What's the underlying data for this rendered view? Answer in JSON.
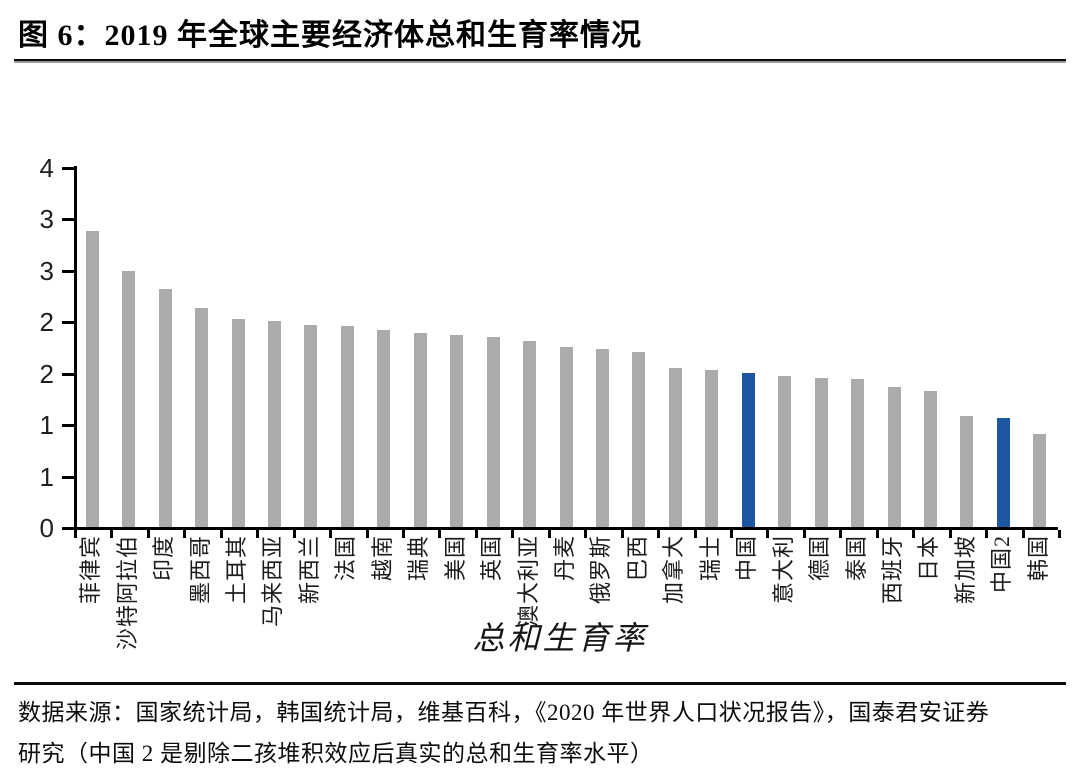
{
  "figure": {
    "title": "图 6：2019 年全球主要经济体总和生育率情况",
    "source_note_line1": "数据来源：国家统计局，韩国统计局，维基百科，《2020 年世界人口状况报告》，国泰君安证券",
    "source_note_line2": "研究（中国 2 是剔除二孩堆积效应后真实的总和生育率水平）"
  },
  "chart_data": {
    "type": "bar",
    "title": "2019 年全球主要经济体总和生育率情况",
    "xlabel": "总和生育率",
    "ylabel": "",
    "ylim": [
      0,
      3.5
    ],
    "grid": false,
    "legend_position": "none",
    "y_tick_values": [
      0,
      0.5,
      1,
      1.5,
      2,
      2.5,
      3,
      3.5
    ],
    "y_tick_labels": [
      "0",
      "1",
      "1",
      "2",
      "2",
      "3",
      "3",
      "4"
    ],
    "categories": [
      "菲律宾",
      "沙特阿拉伯",
      "印度",
      "墨西哥",
      "土耳其",
      "马来西亚",
      "新西兰",
      "法国",
      "越南",
      "瑞典",
      "美国",
      "英国",
      "澳大利亚",
      "丹麦",
      "俄罗斯",
      "巴西",
      "加拿大",
      "瑞士",
      "中国",
      "意大利",
      "德国",
      "泰国",
      "西班牙",
      "日本",
      "新加坡",
      "中国2",
      "韩国"
    ],
    "values": [
      2.88,
      2.49,
      2.31,
      2.13,
      2.02,
      2.0,
      1.96,
      1.95,
      1.92,
      1.89,
      1.87,
      1.85,
      1.81,
      1.75,
      1.73,
      1.7,
      1.55,
      1.53,
      1.5,
      1.47,
      1.45,
      1.44,
      1.36,
      1.32,
      1.08,
      1.06,
      0.9
    ],
    "highlighted_categories": [
      "中国",
      "中国2"
    ],
    "bar_color": "#ABABAB",
    "highlight_color": "#1F56A0",
    "axis_color": "#000000"
  }
}
